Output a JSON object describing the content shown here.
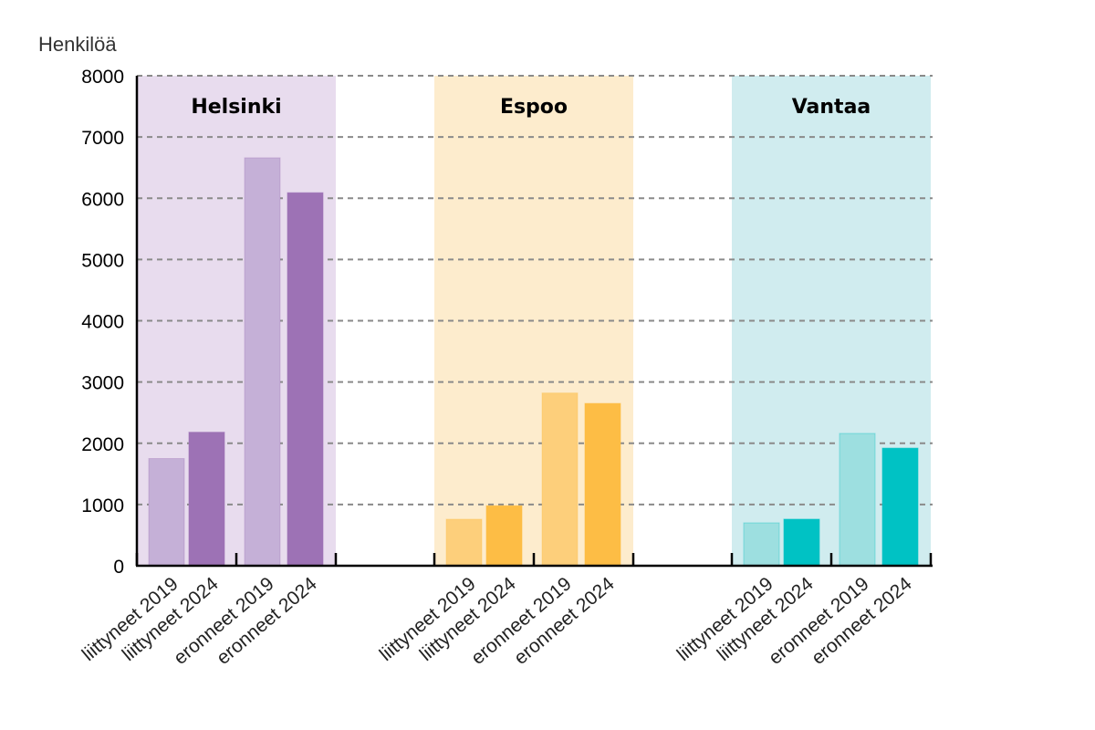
{
  "chart_data": {
    "type": "bar",
    "ylabel": "Henkilöä",
    "ylim": [
      0,
      8000
    ],
    "yticks": [
      0,
      1000,
      2000,
      3000,
      4000,
      5000,
      6000,
      7000,
      8000
    ],
    "grid": true,
    "categories": [
      "liittyneet 2019",
      "liittyneet 2024",
      "eronneet 2019",
      "eronneet 2024"
    ],
    "groups": [
      {
        "name": "Helsinki",
        "colors": {
          "background": "#e8dcee",
          "light": "#c5b0d7",
          "dark": "#9d72b5"
        },
        "values": [
          1750,
          2180,
          6660,
          6090
        ]
      },
      {
        "name": "Espoo",
        "colors": {
          "background": "#fdeccd",
          "light": "#fdcf7b",
          "dark": "#fdbd45"
        },
        "values": [
          760,
          980,
          2820,
          2650
        ]
      },
      {
        "name": "Vantaa",
        "colors": {
          "background": "#d0ecef",
          "light": "#9ddfe0",
          "dark": "#00c2c4"
        },
        "values": [
          700,
          760,
          2160,
          1920
        ]
      }
    ]
  }
}
